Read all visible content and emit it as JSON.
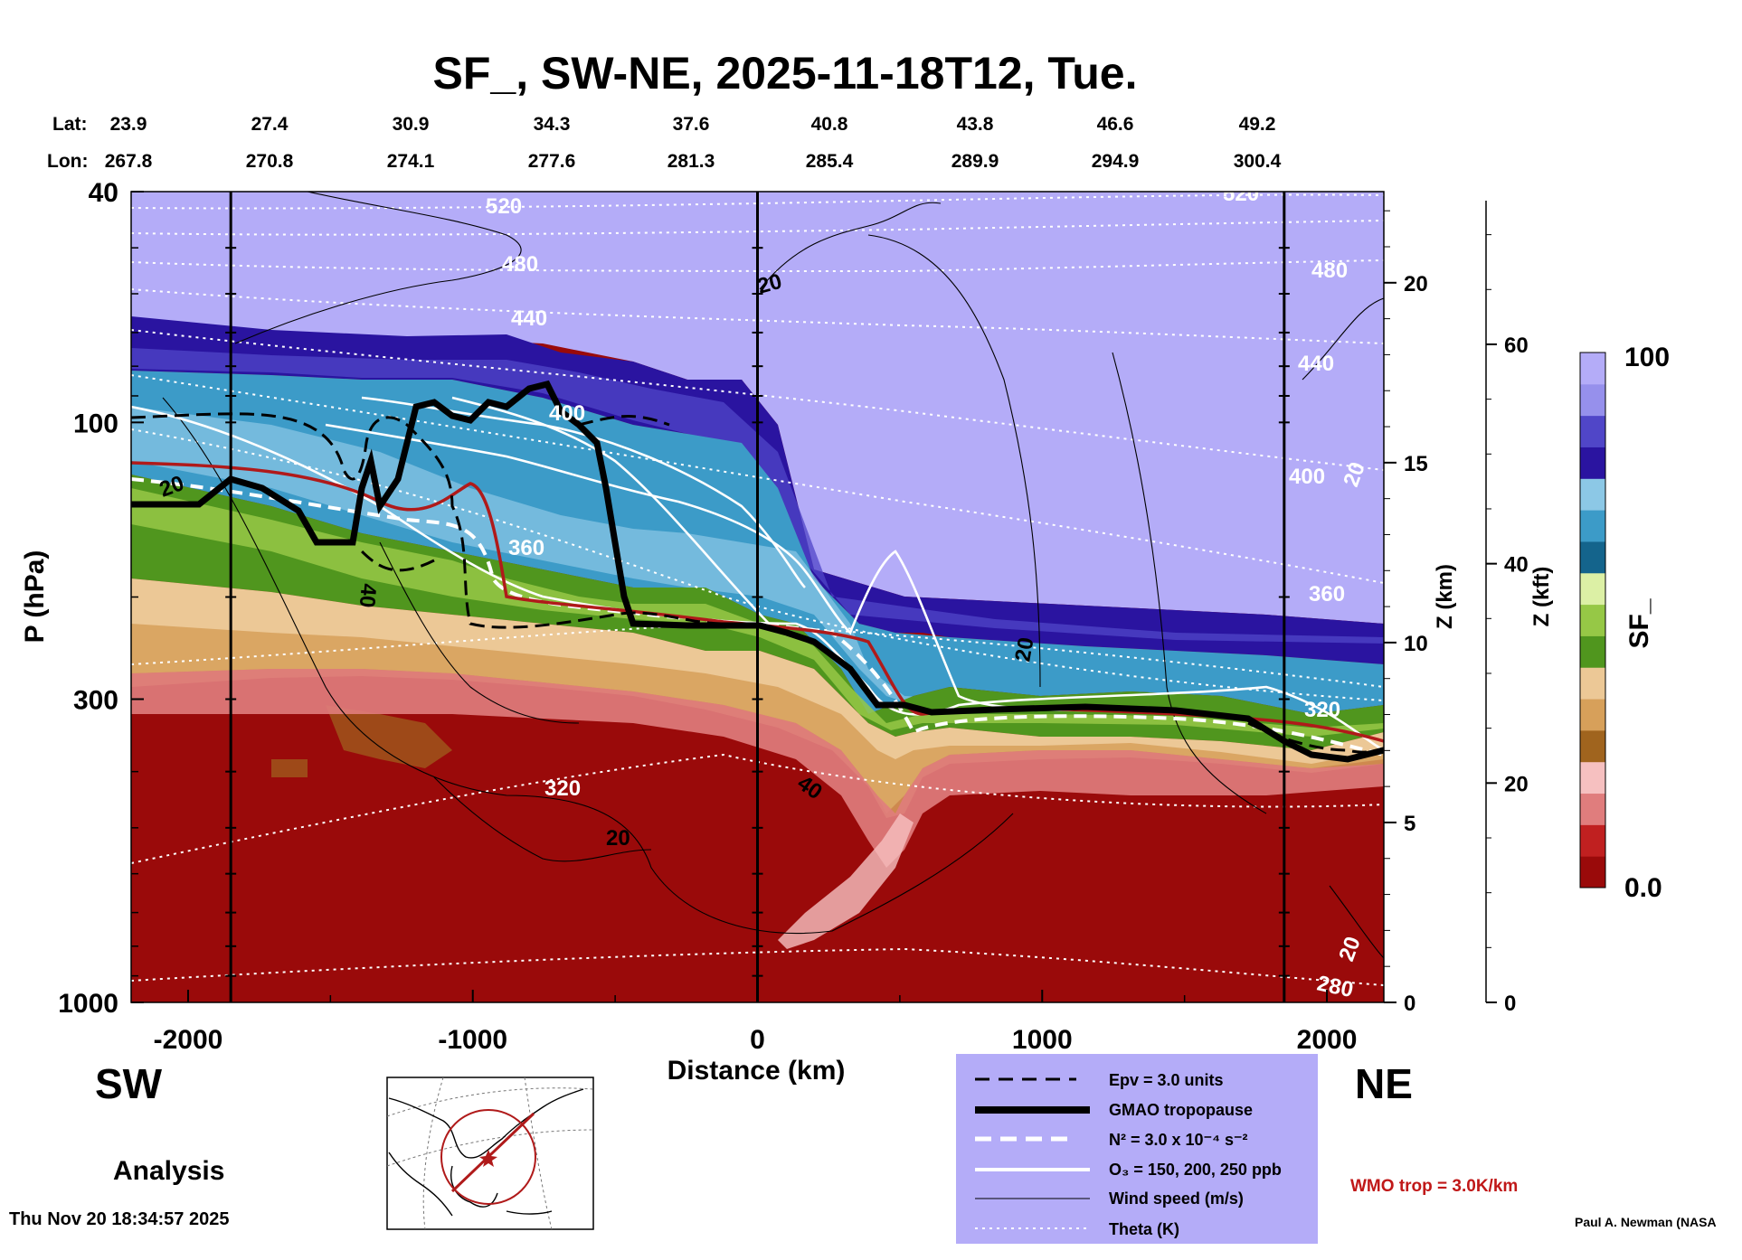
{
  "chart_data": {
    "type": "heatmap",
    "title": "SF_, SW-NE, 2025-11-18T12, Tue.",
    "xlabel": "Distance (km)",
    "ylabel": "P (hPa)",
    "y2label": "Z (km)",
    "y3label": "Z (kft)",
    "colorbar_label": "SF_",
    "xlim": [
      -2200,
      2200
    ],
    "ylim_hpa": [
      1000,
      40
    ],
    "y_log_scale": true,
    "x_ticks": [
      "-2000",
      "-1000",
      "0",
      "1000",
      "2000"
    ],
    "y_ticks": [
      "40",
      "100",
      "300",
      "1000"
    ],
    "z_km_ticks": [
      "0",
      "5",
      "10",
      "15",
      "20"
    ],
    "z_kft_ticks": [
      "0",
      "20",
      "40",
      "60"
    ],
    "colorbar_ticks": [
      "100",
      "0.0"
    ],
    "colorbar_range": [
      0.0,
      100
    ],
    "colorbar_colors": [
      "#9a0a0a",
      "#c02020",
      "#e07d7d",
      "#f6c0c0",
      "#a0641e",
      "#d7a05a",
      "#ecc896",
      "#50961e",
      "#96c846",
      "#dcf0a5",
      "#14648c",
      "#3c9bc8",
      "#8cc8e6",
      "#2a14a0",
      "#5046c8",
      "#9690ec",
      "#b4acf8"
    ],
    "lat_label": "Lat:",
    "lon_label": "Lon:",
    "lat_values": [
      "23.9",
      "27.4",
      "30.9",
      "34.3",
      "37.6",
      "40.8",
      "43.8",
      "46.6",
      "49.2"
    ],
    "lon_values": [
      "267.8",
      "270.8",
      "274.1",
      "277.6",
      "281.3",
      "285.4",
      "289.9",
      "294.9",
      "300.4"
    ],
    "vertical_markers_km": [
      -1850,
      0,
      1850
    ],
    "theta_labels": [
      "520",
      "480",
      "440",
      "400",
      "360",
      "320",
      "480",
      "440",
      "400",
      "360",
      "320",
      "280",
      "520"
    ],
    "wind_labels": [
      "20",
      "20",
      "40",
      "40",
      "20",
      "20",
      "20",
      "20"
    ],
    "direction_left": "SW",
    "direction_right": "NE",
    "analysis_label": "Analysis",
    "legend": [
      {
        "label": "Epv = 3.0 units",
        "style": "dashed-black"
      },
      {
        "label": "GMAO tropopause",
        "style": "thick-black"
      },
      {
        "label": "N² = 3.0 x 10⁻⁴ s⁻²",
        "style": "dashed-white"
      },
      {
        "label": "O₃ = 150, 200, 250 ppb",
        "style": "solid-white"
      },
      {
        "label": "Wind speed (m/s)",
        "style": "thin-black"
      },
      {
        "label": "Theta (K)",
        "style": "dotted-white"
      }
    ],
    "legend_bg": "#b4acf8",
    "wmo_note": "WMO trop = 3.0K/km",
    "wmo_color": "#c01818",
    "timestamp": "Thu Nov 20 18:34:57 2025",
    "author": "Paul A. Newman (NASA"
  }
}
